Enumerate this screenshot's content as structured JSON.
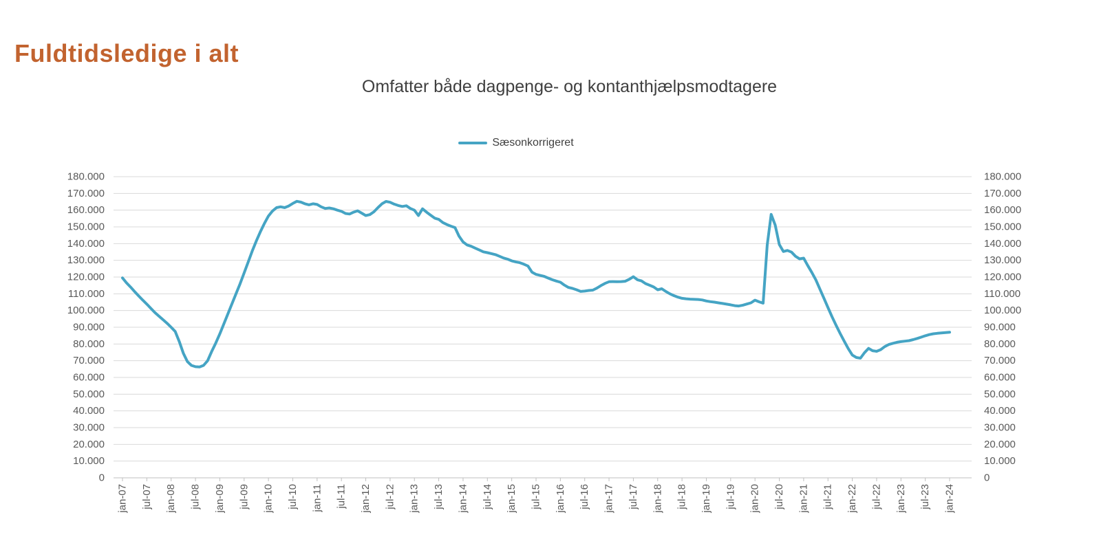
{
  "header": {
    "title": "Fuldtidsledige i alt",
    "title_color": "#C2632F"
  },
  "chart": {
    "subtitle": "Omfatter både dagpenge- og kontanthjælpsmodtagere",
    "subtitle_color": "#3F3F3F",
    "legend": [
      {
        "label": "Sæsonkorrigeret",
        "color": "#45A4C4"
      }
    ]
  },
  "chart_data": {
    "type": "line",
    "title": "Omfatter både dagpenge- og kontanthjælpsmodtagere",
    "legend_position": "top-center",
    "grid": "horizontal",
    "x_frequency": "monthly",
    "x_start": "jan-07",
    "x_end": "jan-24",
    "x_tick_labels": [
      "jan-07",
      "jul-07",
      "jan-08",
      "jul-08",
      "jan-09",
      "jul-09",
      "jan-10",
      "jul-10",
      "jan-11",
      "jul-11",
      "jan-12",
      "jul-12",
      "jan-13",
      "jul-13",
      "jan-14",
      "jul-14",
      "jan-15",
      "jul-15",
      "jan-16",
      "jul-16",
      "jan-17",
      "jul-17",
      "jan-18",
      "jul-18",
      "jan-19",
      "jul-19",
      "jan-20",
      "jul-20",
      "jan-21",
      "jul-21",
      "jan-22",
      "jul-22",
      "jan-23",
      "jul-23",
      "jan-24"
    ],
    "ylim": [
      0,
      180000
    ],
    "y_tick_step": 10000,
    "y_tick_labels_top_to_bottom": [
      "180.000",
      "170.000",
      "160.000",
      "150.000",
      "140.000",
      "130.000",
      "120.000",
      "110.000",
      "100.000",
      "90.000",
      "80.000",
      "70.000",
      "60.000",
      "50.000",
      "40.000",
      "30.000",
      "20.000",
      "10.000",
      "0"
    ],
    "axis_label_color": "#595959",
    "gridline_color": "#D9D9D9",
    "axis_line_color": "#BFBFBF",
    "series": [
      {
        "name": "Sæsonkorrigeret",
        "color": "#45A4C4",
        "values": [
          119500,
          116500,
          114000,
          111300,
          108700,
          106200,
          103800,
          101300,
          98800,
          96600,
          94500,
          92400,
          90000,
          87500,
          81500,
          74500,
          69500,
          67200,
          66400,
          66300,
          67200,
          70000,
          75500,
          80500,
          86000,
          92000,
          98000,
          104000,
          110000,
          116000,
          122500,
          129000,
          135500,
          141500,
          147000,
          152000,
          156500,
          159500,
          161500,
          162000,
          161500,
          162500,
          164000,
          165300,
          164800,
          163800,
          163200,
          163800,
          163400,
          162000,
          161000,
          161300,
          160800,
          160000,
          159300,
          158000,
          157700,
          158800,
          159600,
          158200,
          156800,
          157300,
          159000,
          161500,
          163800,
          165200,
          164700,
          163600,
          162800,
          162200,
          162600,
          161000,
          160000,
          156800,
          160800,
          158800,
          157000,
          155200,
          154500,
          152600,
          151400,
          150400,
          149600,
          144500,
          141000,
          139200,
          138400,
          137300,
          136200,
          135100,
          134600,
          134000,
          133400,
          132400,
          131400,
          130700,
          129700,
          129100,
          128600,
          127700,
          126600,
          122900,
          121600,
          121000,
          120400,
          119400,
          118400,
          117600,
          116900,
          115200,
          113800,
          113200,
          112400,
          111400,
          111600,
          112000,
          112200,
          113400,
          114900,
          116200,
          117200,
          117300,
          117200,
          117300,
          117500,
          118700,
          120200,
          118400,
          117700,
          116100,
          115100,
          114100,
          112400,
          113000,
          111400,
          110000,
          108900,
          108000,
          107300,
          107000,
          106800,
          106700,
          106600,
          106300,
          105700,
          105300,
          105000,
          104600,
          104200,
          103800,
          103400,
          102900,
          102700,
          103200,
          103900,
          104600,
          106200,
          105200,
          104400,
          139000,
          157500,
          151000,
          139500,
          135300,
          135900,
          134900,
          132400,
          130900,
          131300,
          126900,
          122800,
          118300,
          112800,
          107400,
          101800,
          96300,
          91200,
          86300,
          81700,
          77200,
          73400,
          71900,
          71500,
          74800,
          77400,
          76000,
          75600,
          76600,
          78400,
          79700,
          80400,
          81000,
          81400,
          81700,
          82000,
          82600,
          83300,
          84100,
          84900,
          85600,
          86100,
          86400,
          86600,
          86800,
          87000
        ]
      }
    ]
  }
}
